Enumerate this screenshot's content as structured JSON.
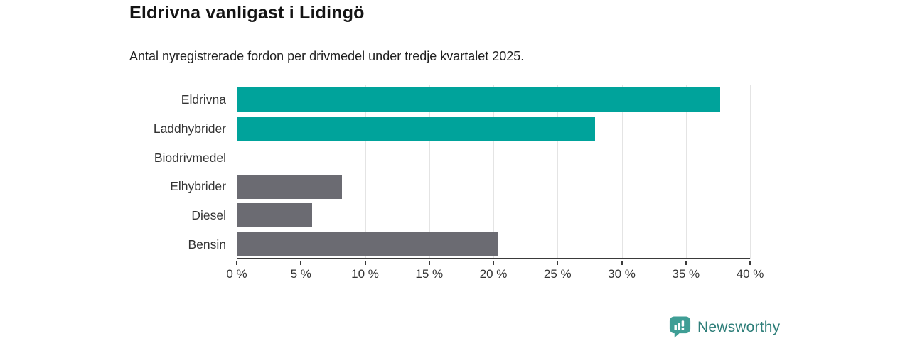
{
  "header": {
    "title": "Eldrivna vanligast i Lidingö",
    "subtitle": "Antal nyregistrerade fordon per drivmedel under tredje kvartalet 2025."
  },
  "chart_data": {
    "type": "bar",
    "orientation": "horizontal",
    "title": "Eldrivna vanligast i Lidingö",
    "subtitle": "Antal nyregistrerade fordon per drivmedel under tredje kvartalet 2025.",
    "categories": [
      "Eldrivna",
      "Laddhybrider",
      "Biodrivmedel",
      "Elhybrider",
      "Diesel",
      "Bensin"
    ],
    "values": [
      37.7,
      27.9,
      0,
      8.2,
      5.9,
      20.4
    ],
    "unit": "%",
    "bar_colors": [
      "#00a39b",
      "#00a39b",
      "#6b6b72",
      "#6b6b72",
      "#6b6b72",
      "#6b6b72"
    ],
    "xlim": [
      0,
      40
    ],
    "x_ticks": [
      0,
      5,
      10,
      15,
      20,
      25,
      30,
      35,
      40
    ],
    "x_tick_labels": [
      "0 %",
      "5 %",
      "10 %",
      "15 %",
      "20 %",
      "25 %",
      "30 %",
      "35 %",
      "40 %"
    ],
    "grid": true,
    "legend": false
  },
  "branding": {
    "logo_text": "Newsworthy",
    "logo_text_color": "#2e7e79",
    "icon_color": "#3f9e95",
    "icon_name": "newsworthy-chart-bubble-icon"
  },
  "colors": {
    "highlight": "#00a39b",
    "neutral": "#6b6b72",
    "axis": "#3a3a3a",
    "gridline": "#e4e4e4",
    "text": "#333333",
    "background": "#ffffff"
  }
}
